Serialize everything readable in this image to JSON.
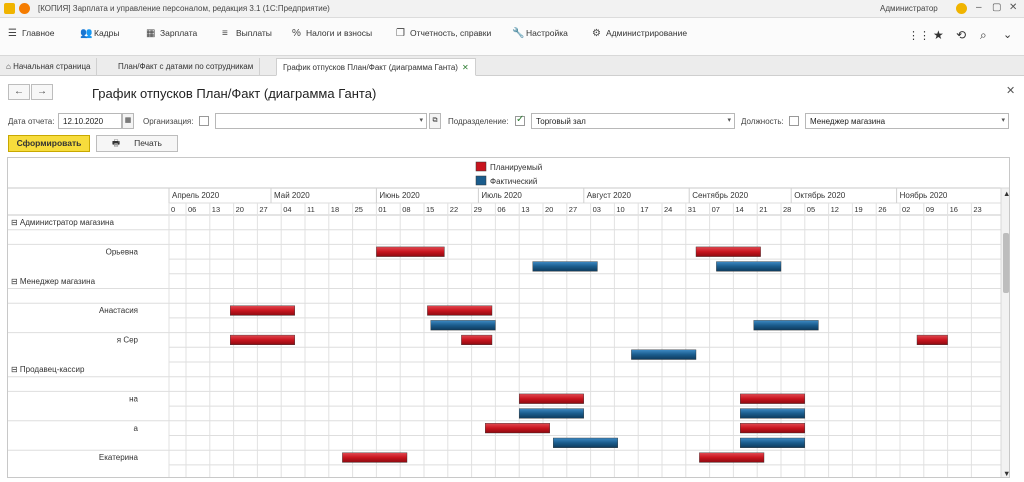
{
  "window": {
    "title": "[КОПИЯ] Зарплата и управление персоналом, редакция 3.1  (1С:Предприятие)",
    "user": "Администратор"
  },
  "menu": [
    {
      "label": "Главное",
      "icon": "hamburger-icon"
    },
    {
      "label": "Кадры",
      "icon": "people-icon"
    },
    {
      "label": "Зарплата",
      "icon": "calculator-icon"
    },
    {
      "label": "Выплаты",
      "icon": "list-icon"
    },
    {
      "label": "Налоги и взносы",
      "icon": "percent-icon"
    },
    {
      "label": "Отчетность, справки",
      "icon": "documents-icon"
    },
    {
      "label": "Настройка",
      "icon": "wrench-icon"
    },
    {
      "label": "Администрирование",
      "icon": "gear-icon"
    }
  ],
  "tabs": [
    {
      "label": "Начальная страница",
      "icon": "home-icon"
    },
    {
      "label": "План/Факт с датами по сотрудникам"
    },
    {
      "label": "График отпусков План/Факт (диаграмма Ганта)",
      "active": true
    }
  ],
  "form": {
    "title": "График отпусков План/Факт (диаграмма Ганта)",
    "report_date_label": "Дата отчета:",
    "report_date": "12.10.2020",
    "organization_label": "Организация:",
    "organization_checked": false,
    "organization_value": "",
    "subdivision_label": "Подразделение:",
    "subdivision_checked": true,
    "subdivision_value": "Торговый зал",
    "position_label": "Должность:",
    "position_checked": false,
    "position_value": "Менеджер магазина",
    "generate_button": "Сформировать",
    "print_button": "Печать"
  },
  "gantt": {
    "legend": [
      {
        "label": "Планируемый",
        "color": "#c8141e"
      },
      {
        "label": "Фактический",
        "color": "#1a5c8c"
      }
    ],
    "months": [
      "Апрель 2020",
      "Май 2020",
      "Июнь 2020",
      "Июль 2020",
      "Август 2020",
      "Сентябрь 2020",
      "Октябрь 2020",
      "Ноябрь 2020"
    ],
    "week_labels": [
      "0",
      "06",
      "13",
      "20",
      "27",
      "04",
      "11",
      "18",
      "25",
      "01",
      "08",
      "15",
      "22",
      "29",
      "06",
      "13",
      "20",
      "27",
      "03",
      "10",
      "17",
      "24",
      "31",
      "07",
      "14",
      "21",
      "28",
      "05",
      "12",
      "19",
      "26",
      "02",
      "09",
      "16",
      "23"
    ],
    "rows": [
      {
        "label": "⊟ Администратор магазина",
        "group": true
      },
      {
        "label": ""
      },
      {
        "label": "Орьевна"
      },
      {
        "label": ""
      },
      {
        "label": "⊟ Менеджер магазина",
        "group": true
      },
      {
        "label": ""
      },
      {
        "label": "Анастасия"
      },
      {
        "label": ""
      },
      {
        "label": "я Сер"
      },
      {
        "label": ""
      },
      {
        "label": "⊟ Продавец-кассир",
        "group": true
      },
      {
        "label": ""
      },
      {
        "label": "на"
      },
      {
        "label": ""
      },
      {
        "label": "а"
      },
      {
        "label": ""
      },
      {
        "label": "Екатерина"
      }
    ],
    "bars": [
      {
        "row": 2,
        "type": "plan",
        "start": "2020-06-01",
        "end": "2020-06-21"
      },
      {
        "row": 2,
        "type": "plan",
        "start": "2020-09-03",
        "end": "2020-09-22"
      },
      {
        "row": 3,
        "type": "fact",
        "start": "2020-07-17",
        "end": "2020-08-05"
      },
      {
        "row": 3,
        "type": "fact",
        "start": "2020-09-09",
        "end": "2020-09-28"
      },
      {
        "row": 6,
        "type": "plan",
        "start": "2020-04-19",
        "end": "2020-05-08"
      },
      {
        "row": 6,
        "type": "plan",
        "start": "2020-06-16",
        "end": "2020-07-05"
      },
      {
        "row": 7,
        "type": "fact",
        "start": "2020-06-17",
        "end": "2020-07-06"
      },
      {
        "row": 7,
        "type": "fact",
        "start": "2020-09-20",
        "end": "2020-10-09"
      },
      {
        "row": 8,
        "type": "plan",
        "start": "2020-04-19",
        "end": "2020-05-08"
      },
      {
        "row": 8,
        "type": "plan",
        "start": "2020-06-26",
        "end": "2020-07-05"
      },
      {
        "row": 8,
        "type": "plan",
        "start": "2020-11-07",
        "end": "2020-11-16"
      },
      {
        "row": 9,
        "type": "fact",
        "start": "2020-08-15",
        "end": "2020-09-03"
      },
      {
        "row": 12,
        "type": "plan",
        "start": "2020-07-13",
        "end": "2020-08-01"
      },
      {
        "row": 12,
        "type": "plan",
        "start": "2020-09-16",
        "end": "2020-10-05"
      },
      {
        "row": 13,
        "type": "fact",
        "start": "2020-07-13",
        "end": "2020-08-01"
      },
      {
        "row": 13,
        "type": "fact",
        "start": "2020-09-16",
        "end": "2020-10-05"
      },
      {
        "row": 14,
        "type": "plan",
        "start": "2020-07-03",
        "end": "2020-07-22"
      },
      {
        "row": 14,
        "type": "plan",
        "start": "2020-09-16",
        "end": "2020-10-05"
      },
      {
        "row": 15,
        "type": "fact",
        "start": "2020-07-23",
        "end": "2020-08-11"
      },
      {
        "row": 15,
        "type": "fact",
        "start": "2020-09-16",
        "end": "2020-10-05"
      },
      {
        "row": 16,
        "type": "plan",
        "start": "2020-05-22",
        "end": "2020-06-10"
      },
      {
        "row": 16,
        "type": "plan",
        "start": "2020-09-04",
        "end": "2020-09-23"
      }
    ]
  }
}
